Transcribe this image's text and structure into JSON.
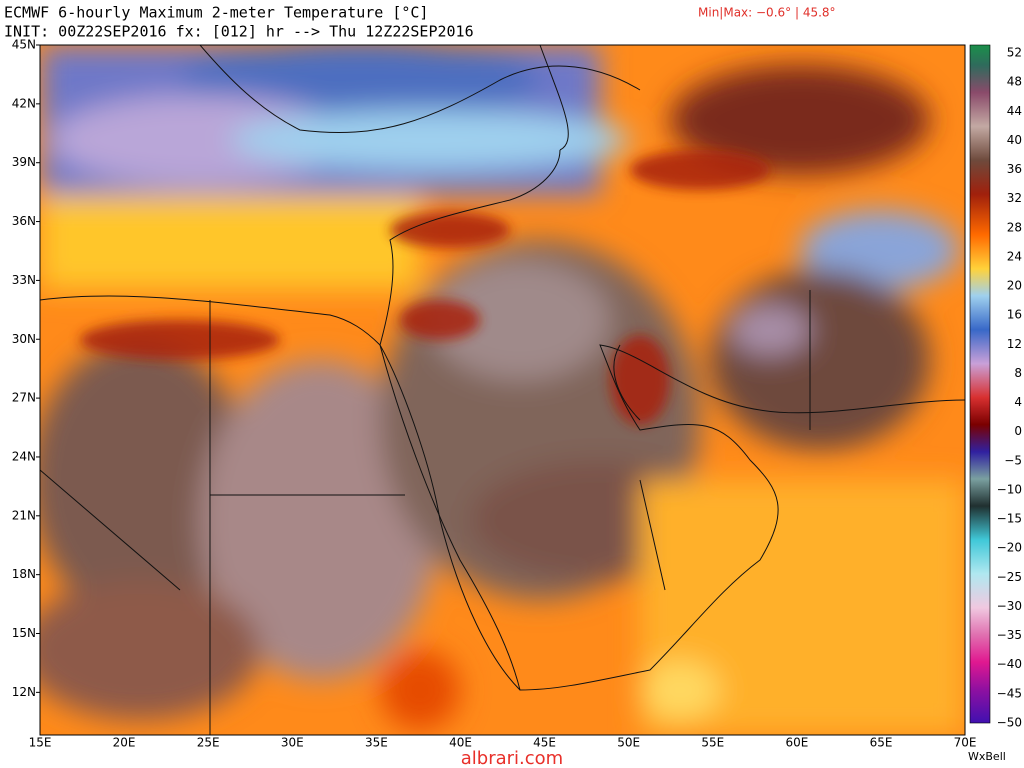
{
  "header": {
    "title": "ECMWF 6-hourly Maximum 2-meter Temperature [°C]",
    "init": "INIT: 00Z22SEP2016 fx: [012] hr --> Thu 12Z22SEP2016",
    "minmax": "Min|Max: −0.6° | 45.8°"
  },
  "map": {
    "lat_labels": [
      "45N",
      "42N",
      "39N",
      "36N",
      "33N",
      "30N",
      "27N",
      "24N",
      "21N",
      "18N",
      "15N",
      "12N"
    ],
    "lon_labels": [
      "15E",
      "20E",
      "25E",
      "30E",
      "35E",
      "40E",
      "45E",
      "50E",
      "55E",
      "60E",
      "65E",
      "70E"
    ]
  },
  "colorbar": {
    "labels": [
      "52",
      "48",
      "44",
      "40",
      "36",
      "32",
      "28",
      "24",
      "20",
      "16",
      "12",
      "8",
      "4",
      "0",
      "−5",
      "−10",
      "−15",
      "−20",
      "−25",
      "−30",
      "−35",
      "−40",
      "−45",
      "−50"
    ]
  },
  "footer": {
    "brand": "WxBell",
    "watermark": "albrari.com"
  }
}
